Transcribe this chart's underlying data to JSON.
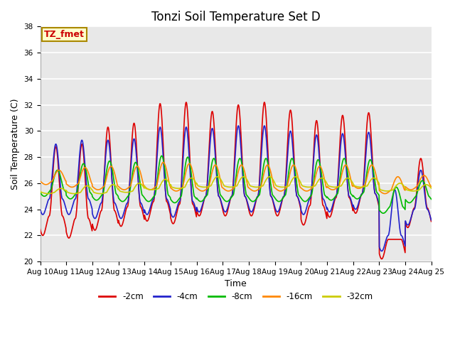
{
  "title": "Tonzi Soil Temperature Set D",
  "xlabel": "Time",
  "ylabel": "Soil Temperature (C)",
  "ylim": [
    20,
    38
  ],
  "x_tick_labels": [
    "Aug 10",
    "Aug 11",
    "Aug 12",
    "Aug 13",
    "Aug 14",
    "Aug 15",
    "Aug 16",
    "Aug 17",
    "Aug 18",
    "Aug 19",
    "Aug 20",
    "Aug 21",
    "Aug 22",
    "Aug 23",
    "Aug 24",
    "Aug 25"
  ],
  "series": [
    {
      "label": "-2cm",
      "color": "#dd0000",
      "linewidth": 1.2
    },
    {
      "label": "-4cm",
      "color": "#2222cc",
      "linewidth": 1.2
    },
    {
      "label": "-8cm",
      "color": "#00bb00",
      "linewidth": 1.2
    },
    {
      "label": "-16cm",
      "color": "#ff8800",
      "linewidth": 1.2
    },
    {
      "label": "-32cm",
      "color": "#cccc00",
      "linewidth": 1.2
    }
  ],
  "annotation_text": "TZ_fmet",
  "annotation_color": "#cc0000",
  "annotation_bg": "#ffffcc",
  "annotation_border": "#aa8800",
  "plot_bg": "#e8e8e8",
  "title_fontsize": 12,
  "label_fontsize": 9,
  "tick_fontsize": 7.5
}
